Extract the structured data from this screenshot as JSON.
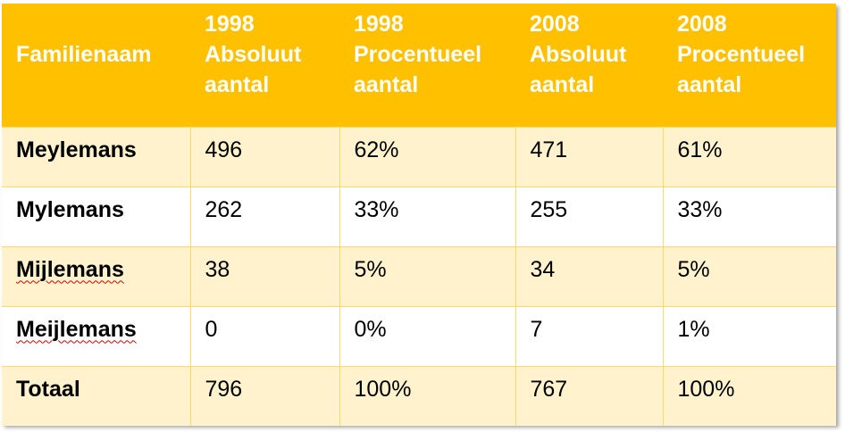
{
  "table": {
    "header": [
      [
        "Familienaam"
      ],
      [
        "1998",
        "Absoluut",
        "aantal"
      ],
      [
        "1998",
        "Procentueel",
        "aantal"
      ],
      [
        "2008",
        "Absoluut",
        "aantal"
      ],
      [
        "2008",
        "Procentueel",
        "aantal"
      ]
    ],
    "rows": [
      [
        "Meylemans",
        "496",
        "62%",
        "471",
        "61%"
      ],
      [
        "Mylemans",
        "262",
        "33%",
        "255",
        "33%"
      ],
      [
        "Mijlemans",
        "38",
        "5%",
        "34",
        "5%"
      ],
      [
        "Meijlemans",
        "0",
        "0%",
        "7",
        "1%"
      ],
      [
        "Totaal",
        "796",
        "100%",
        "767",
        "100%"
      ]
    ],
    "spellcheck_rows": [
      2,
      3
    ]
  }
}
